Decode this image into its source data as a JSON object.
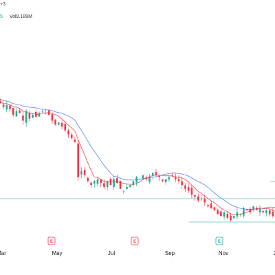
{
  "legend": {
    "top_fragment": "+3",
    "vol_prefix": "5",
    "vol_label": "Vol",
    "vol_value": "9.189M"
  },
  "colors": {
    "up": "#22ab94",
    "down": "#f23645",
    "ma_fast": "#f7525f",
    "ma_slow": "#6b8cff",
    "support_line": "#0fa3b1",
    "earnings_badge": "#f23645",
    "earnings_badge_alt": "#22ab94"
  },
  "chart_data": {
    "type": "candlestick",
    "x_axis": {
      "type": "month-time",
      "ticks": [
        "Mar",
        "May",
        "Jul",
        "Sep",
        "Nov",
        "2"
      ]
    },
    "earnings_markers": [
      {
        "label": "E",
        "month": "Apr",
        "color": "red"
      },
      {
        "label": "E",
        "month": "Jul",
        "color": "red"
      },
      {
        "label": "E",
        "month": "Oct",
        "color": "green"
      }
    ],
    "candles_close_trend": [
      100,
      98,
      99,
      97,
      94,
      96,
      95,
      91,
      96,
      92,
      94,
      93,
      95,
      96,
      95,
      94,
      91,
      89,
      90,
      88,
      86,
      84,
      82,
      80,
      62,
      65,
      63,
      60,
      58,
      60,
      61,
      59,
      57,
      60,
      58,
      61,
      59,
      56,
      55,
      57,
      58,
      60,
      62,
      61,
      63,
      61,
      62,
      64,
      63,
      62,
      60,
      61,
      62,
      63,
      61,
      60,
      58,
      56,
      55,
      53,
      52,
      50,
      51,
      49,
      47,
      46,
      45,
      43,
      42,
      44,
      41,
      40,
      42,
      44,
      43,
      46,
      45,
      44,
      47,
      45,
      46,
      44,
      45,
      43,
      42,
      41
    ]
  }
}
